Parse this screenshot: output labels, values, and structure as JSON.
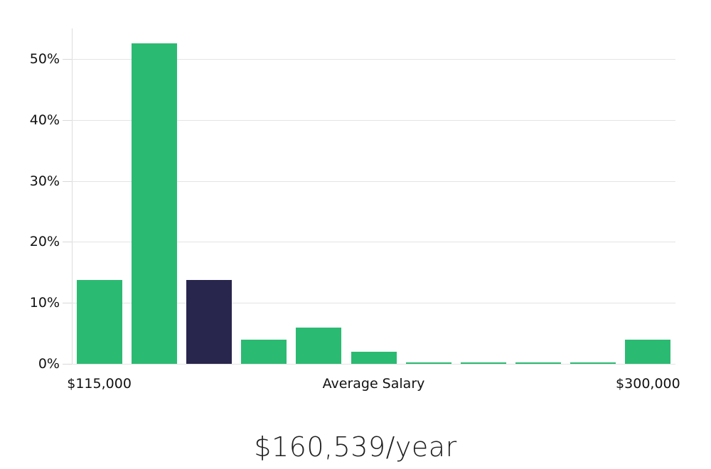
{
  "chart_data": {
    "type": "bar",
    "title": "",
    "xlabel": "Average Salary",
    "ylabel": "",
    "x_tick_labels": [
      "$115,000",
      "$300,000"
    ],
    "y_tick_values": [
      0,
      10,
      20,
      30,
      40,
      50
    ],
    "y_tick_labels": [
      "0%",
      "10%",
      "20%",
      "30%",
      "40%",
      "50%"
    ],
    "ylim": [
      0,
      55
    ],
    "grid": true,
    "values": [
      13.7,
      52.5,
      13.7,
      4.0,
      6.0,
      2.0,
      0.2,
      0.2,
      0.2,
      0.2,
      4.0
    ],
    "highlight_index": 2,
    "legend_position": "none",
    "colors": {
      "bar": "#2bba72",
      "highlight_bar": "#29264d",
      "gridline": "#e4e4e4",
      "axis": "#dcdcdc",
      "label_text": "#111111",
      "footer_text": "#1f1f1f"
    }
  },
  "footer": {
    "average_salary": "$160,539/year"
  }
}
